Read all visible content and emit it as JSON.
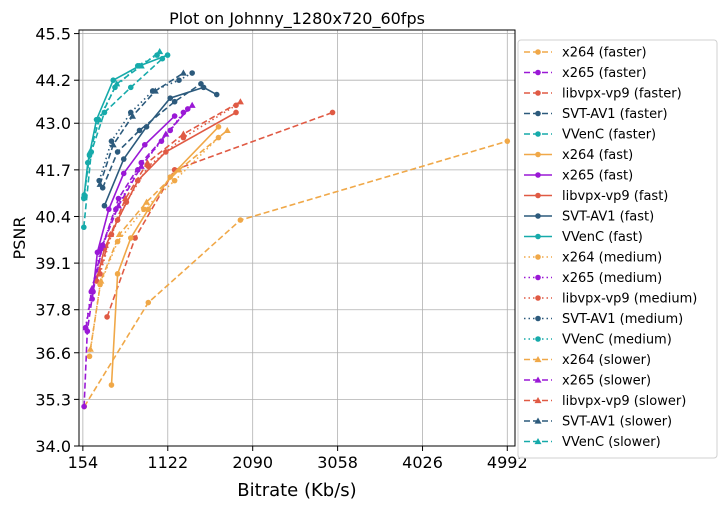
{
  "chart_data": {
    "type": "line",
    "title": "Plot on Johnny_1280x720_60fps",
    "xlabel": "Bitrate (Kb/s)",
    "ylabel": "PSNR",
    "xlim": [
      110,
      5080
    ],
    "ylim": [
      34.0,
      45.6
    ],
    "x_ticks": [
      154,
      1122,
      2090,
      3058,
      4026,
      4992
    ],
    "y_ticks": [
      34.0,
      35.3,
      36.6,
      37.8,
      39.1,
      40.4,
      41.7,
      43.0,
      44.2,
      45.5
    ],
    "grid": true,
    "legend_position": "right",
    "colors": {
      "x264": "#f0a848",
      "x265": "#9a18d6",
      "libvpx-vp9": "#e05a44",
      "SVT-AV1": "#2c5a7c",
      "VVenC": "#16aaaa"
    },
    "series": [
      {
        "name": "x264 (faster)",
        "codec": "x264",
        "line": "dashed",
        "marker": "circle",
        "x": [
          170,
          900,
          1950,
          4992
        ],
        "y": [
          35.1,
          38.0,
          40.3,
          42.5
        ]
      },
      {
        "name": "x265 (faster)",
        "codec": "x265",
        "line": "dashed",
        "marker": "circle",
        "x": [
          168,
          205,
          270,
          380,
          560,
          820,
          1150,
          1350
        ],
        "y": [
          35.1,
          37.2,
          38.3,
          39.6,
          40.9,
          41.9,
          42.8,
          43.4
        ]
      },
      {
        "name": "libvpx-vp9 (faster)",
        "codec": "libvpx-vp9",
        "line": "dashed",
        "marker": "circle",
        "x": [
          430,
          750,
          1200,
          3000
        ],
        "y": [
          37.6,
          39.8,
          41.7,
          43.3
        ]
      },
      {
        "name": "SVT-AV1 (faster)",
        "codec": "SVT-AV1",
        "line": "dashed",
        "marker": "circle",
        "x": [
          380,
          550,
          800,
          1200,
          1500
        ],
        "y": [
          41.2,
          42.2,
          42.8,
          43.6,
          44.1
        ]
      },
      {
        "name": "VVenC (faster)",
        "codec": "VVenC",
        "line": "dashed",
        "marker": "circle",
        "x": [
          165,
          250,
          400,
          700,
          1060
        ],
        "y": [
          40.1,
          42.2,
          43.3,
          44.0,
          44.8
        ]
      },
      {
        "name": "x264 (fast)",
        "codec": "x264",
        "line": "solid",
        "marker": "circle",
        "x": [
          480,
          550,
          700,
          900,
          1150,
          1700
        ],
        "y": [
          35.7,
          38.8,
          39.8,
          40.6,
          41.5,
          42.9
        ]
      },
      {
        "name": "x265 (fast)",
        "codec": "x265",
        "line": "solid",
        "marker": "circle",
        "x": [
          260,
          320,
          450,
          620,
          860,
          1200
        ],
        "y": [
          38.1,
          39.4,
          40.6,
          41.6,
          42.4,
          43.2
        ]
      },
      {
        "name": "libvpx-vp9 (fast)",
        "codec": "libvpx-vp9",
        "line": "solid",
        "marker": "circle",
        "x": [
          310,
          400,
          550,
          780,
          1100,
          1900
        ],
        "y": [
          38.6,
          39.5,
          40.3,
          41.4,
          42.2,
          43.3
        ]
      },
      {
        "name": "SVT-AV1 (fast)",
        "codec": "SVT-AV1",
        "line": "solid",
        "marker": "circle",
        "x": [
          400,
          620,
          880,
          1150,
          1530,
          1680
        ],
        "y": [
          40.7,
          42.0,
          42.9,
          43.7,
          44.0,
          43.8
        ]
      },
      {
        "name": "VVenC (fast)",
        "codec": "VVenC",
        "line": "solid",
        "marker": "circle",
        "x": [
          165,
          210,
          310,
          500,
          800,
          1120
        ],
        "y": [
          40.9,
          41.9,
          43.1,
          44.2,
          44.6,
          44.9
        ]
      },
      {
        "name": "x264 (medium)",
        "codec": "x264",
        "line": "dotted",
        "marker": "circle",
        "x": [
          230,
          350,
          550,
          850,
          1200,
          1700
        ],
        "y": [
          36.5,
          38.5,
          39.7,
          40.6,
          41.4,
          42.6
        ]
      },
      {
        "name": "x265 (medium)",
        "codec": "x265",
        "line": "dotted",
        "marker": "circle",
        "x": [
          185,
          250,
          360,
          530,
          780,
          1050,
          1300
        ],
        "y": [
          37.3,
          38.3,
          39.5,
          40.6,
          41.7,
          42.5,
          43.3
        ]
      },
      {
        "name": "libvpx-vp9 (medium)",
        "codec": "libvpx-vp9",
        "line": "dotted",
        "marker": "circle",
        "x": [
          350,
          480,
          650,
          900,
          1300,
          1900
        ],
        "y": [
          38.8,
          39.9,
          40.8,
          41.8,
          42.6,
          43.5
        ]
      },
      {
        "name": "SVT-AV1 (medium)",
        "codec": "SVT-AV1",
        "line": "dotted",
        "marker": "circle",
        "x": [
          340,
          480,
          700,
          950,
          1250,
          1400
        ],
        "y": [
          41.4,
          42.5,
          43.3,
          43.9,
          44.2,
          44.4
        ]
      },
      {
        "name": "VVenC (medium)",
        "codec": "VVenC",
        "line": "dotted",
        "marker": "circle",
        "x": [
          170,
          230,
          330,
          520,
          780,
          1000
        ],
        "y": [
          41.0,
          42.1,
          43.1,
          44.0,
          44.6,
          44.9
        ]
      },
      {
        "name": "x264 (slower)",
        "codec": "x264",
        "line": "dashed",
        "marker": "triangle",
        "x": [
          240,
          360,
          570,
          880,
          1250,
          1800
        ],
        "y": [
          36.7,
          38.6,
          39.9,
          40.8,
          41.7,
          42.8
        ]
      },
      {
        "name": "x265 (slower)",
        "codec": "x265",
        "line": "dashed",
        "marker": "triangle",
        "x": [
          190,
          260,
          380,
          560,
          820,
          1100,
          1400
        ],
        "y": [
          37.3,
          38.4,
          39.6,
          40.7,
          41.8,
          42.7,
          43.5
        ]
      },
      {
        "name": "libvpx-vp9 (slower)",
        "codec": "libvpx-vp9",
        "line": "dashed",
        "marker": "triangle",
        "x": [
          340,
          470,
          640,
          890,
          1300,
          1950
        ],
        "y": [
          38.8,
          39.9,
          40.9,
          41.9,
          42.7,
          43.6
        ]
      },
      {
        "name": "SVT-AV1 (slower)",
        "codec": "SVT-AV1",
        "line": "dashed",
        "marker": "triangle",
        "x": [
          350,
          500,
          720,
          980,
          1300
        ],
        "y": [
          41.3,
          42.4,
          43.2,
          43.9,
          44.4
        ]
      },
      {
        "name": "VVenC (slower)",
        "codec": "VVenC",
        "line": "dashed",
        "marker": "triangle",
        "x": [
          170,
          235,
          340,
          540,
          820,
          1030
        ],
        "y": [
          41.0,
          42.2,
          43.1,
          44.1,
          44.6,
          45.0
        ]
      }
    ]
  }
}
